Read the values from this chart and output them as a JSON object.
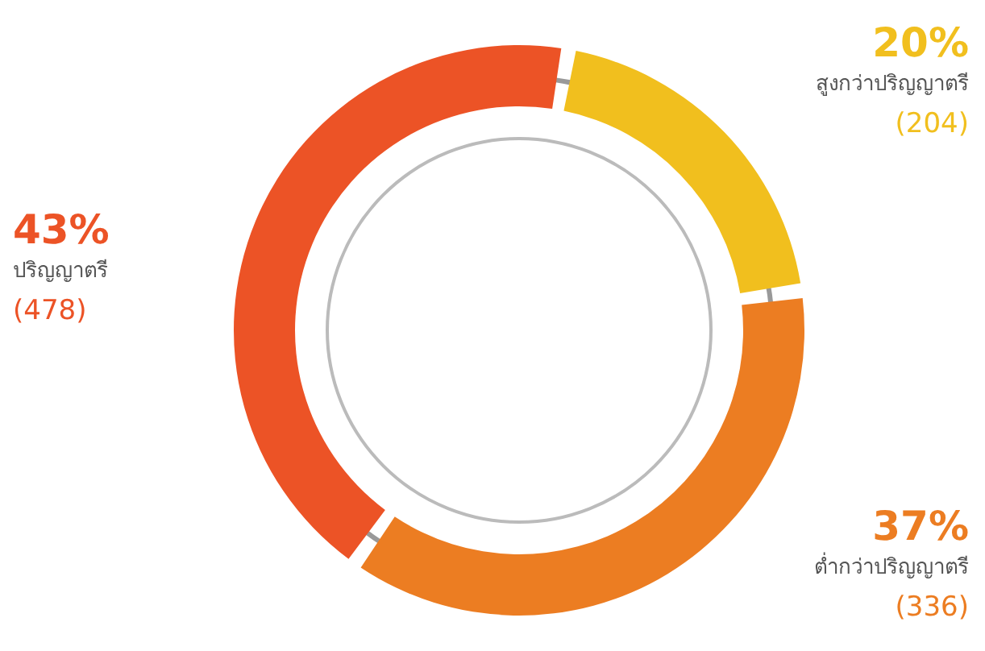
{
  "chart_data": {
    "type": "donut",
    "categories": [
      "สูงกว่าปริญญาตรี",
      "ต่ำกว่าปริญญาตรี",
      "ปริญญาตรี"
    ],
    "values": [
      20,
      37,
      43
    ],
    "colors": [
      "#f1bf1e",
      "#ec7d22",
      "#ec5326"
    ],
    "value_labels": [
      "20%",
      "37%",
      "43%"
    ],
    "annotations": [
      "(204)",
      "(336)",
      "(478)"
    ],
    "legend": false
  }
}
